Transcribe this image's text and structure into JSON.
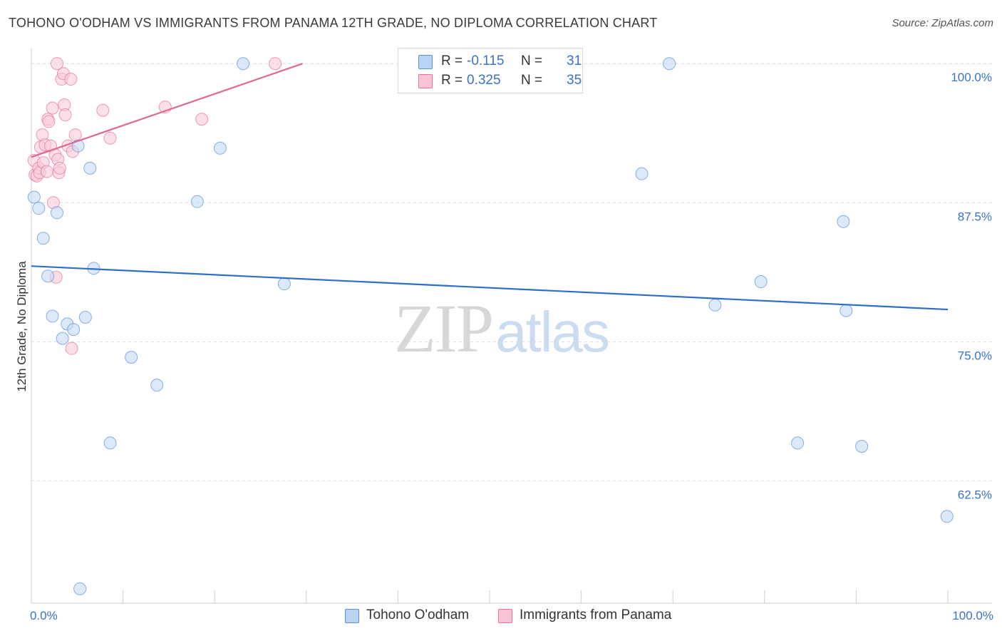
{
  "header": {
    "title": "TOHONO O'ODHAM VS IMMIGRANTS FROM PANAMA 12TH GRADE, NO DIPLOMA CORRELATION CHART",
    "source": "Source: ZipAtlas.com"
  },
  "watermark": {
    "zip": "ZIP",
    "atlas": "atlas"
  },
  "legend": {
    "rows": [
      {
        "r_label": "R =",
        "r_value": "-0.115",
        "n_label": "N =",
        "n_value": "31",
        "color": "#b9d3f3"
      },
      {
        "r_label": "R =",
        "r_value": "0.325",
        "n_label": "N =",
        "n_value": "35",
        "color": "#f8c4d4"
      }
    ]
  },
  "chart_data": {
    "type": "scatter",
    "title": "TOHONO O'ODHAM VS IMMIGRANTS FROM PANAMA 12TH GRADE, NO DIPLOMA CORRELATION CHART",
    "xlabel": "",
    "ylabel": "12th Grade, No Diploma",
    "xlim": [
      0,
      100
    ],
    "ylim": [
      51.5,
      102
    ],
    "x_tick_labels": [
      {
        "value": 0,
        "label": "0.0%"
      },
      {
        "value": 100,
        "label": "100.0%"
      }
    ],
    "y_ticks": [
      {
        "value": 100,
        "label": "100.0%"
      },
      {
        "value": 87.5,
        "label": "87.5%"
      },
      {
        "value": 75,
        "label": "75.0%"
      },
      {
        "value": 62.5,
        "label": "62.5%"
      }
    ],
    "grid": true,
    "legend_position": "top-center",
    "series": [
      {
        "name": "Tohono O'odham",
        "color": "#5b8fd8",
        "fill": "#c5daf5",
        "points": [
          [
            0.3,
            88.0
          ],
          [
            0.8,
            87.0
          ],
          [
            1.3,
            84.3
          ],
          [
            1.8,
            80.9
          ],
          [
            2.3,
            77.3
          ],
          [
            2.8,
            86.6
          ],
          [
            3.4,
            75.3
          ],
          [
            3.9,
            76.6
          ],
          [
            4.6,
            76.1
          ],
          [
            5.1,
            92.6
          ],
          [
            5.9,
            77.2
          ],
          [
            6.4,
            90.6
          ],
          [
            6.8,
            81.6
          ],
          [
            8.6,
            65.9
          ],
          [
            10.9,
            73.6
          ],
          [
            13.7,
            71.1
          ],
          [
            18.1,
            87.6
          ],
          [
            20.6,
            92.4
          ],
          [
            23.1,
            100.0
          ],
          [
            27.6,
            80.2
          ],
          [
            47.6,
            100.0
          ],
          [
            66.6,
            90.1
          ],
          [
            69.6,
            100.0
          ],
          [
            74.6,
            78.3
          ],
          [
            79.6,
            80.4
          ],
          [
            83.6,
            65.9
          ],
          [
            88.6,
            85.8
          ],
          [
            88.9,
            77.8
          ],
          [
            90.6,
            65.6
          ],
          [
            99.9,
            59.3
          ],
          [
            5.3,
            52.8
          ]
        ],
        "trend": {
          "x": [
            0,
            100
          ],
          "y": [
            81.8,
            77.9
          ]
        }
      },
      {
        "name": "Immigrants from Panama",
        "color": "#e8709a",
        "fill": "#f9cbd9",
        "points": [
          [
            0.3,
            91.3
          ],
          [
            0.4,
            90.0
          ],
          [
            0.6,
            89.9
          ],
          [
            0.8,
            90.6
          ],
          [
            0.9,
            90.2
          ],
          [
            1.0,
            92.5
          ],
          [
            1.2,
            93.6
          ],
          [
            1.3,
            91.1
          ],
          [
            1.5,
            92.7
          ],
          [
            1.7,
            90.3
          ],
          [
            1.8,
            95.0
          ],
          [
            1.9,
            94.8
          ],
          [
            2.1,
            92.6
          ],
          [
            2.3,
            96.0
          ],
          [
            2.4,
            87.5
          ],
          [
            2.6,
            91.8
          ],
          [
            2.7,
            80.8
          ],
          [
            2.9,
            91.4
          ],
          [
            3.0,
            90.2
          ],
          [
            3.3,
            98.6
          ],
          [
            3.5,
            99.1
          ],
          [
            3.6,
            96.3
          ],
          [
            3.7,
            95.4
          ],
          [
            4.0,
            92.6
          ],
          [
            4.3,
            98.6
          ],
          [
            4.4,
            74.4
          ],
          [
            4.5,
            92.1
          ],
          [
            4.8,
            93.6
          ],
          [
            2.8,
            100.0
          ],
          [
            7.8,
            95.8
          ],
          [
            8.6,
            93.3
          ],
          [
            14.6,
            96.1
          ],
          [
            18.6,
            95.0
          ],
          [
            26.6,
            100.0
          ],
          [
            3.1,
            90.6
          ]
        ],
        "trend": {
          "x": [
            0,
            29.6
          ],
          "y": [
            91.6,
            100.0
          ]
        }
      }
    ]
  }
}
